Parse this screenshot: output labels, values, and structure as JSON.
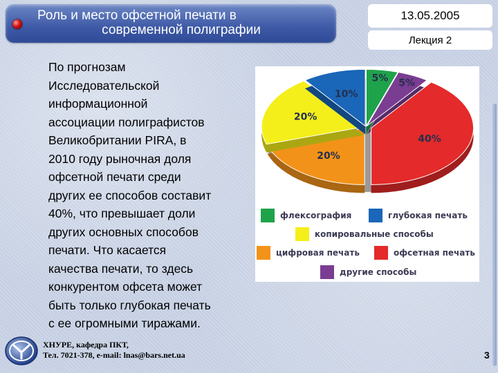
{
  "title": {
    "line1": "Роль  и место офсетной печати в",
    "line2": "современной полиграфии"
  },
  "date": "13.05.2005",
  "lecture": "Лекция 2",
  "body": {
    "lines": [
      "По прогнозам",
      "Исследовательской",
      "информационной",
      "ассоциации полиграфистов",
      "Великобритании PIRA, в",
      "2010 году рыночная доля",
      "офсетной печати среди",
      "других ее способов составит",
      "40%, что превышает доли",
      "других основных способов",
      "печати. Что касается",
      "качества печати, то здесь",
      "конкурентом офсета может",
      "быть только глубокая печать",
      "с ее огромными тиражами."
    ]
  },
  "footer": {
    "line1": "ХНУРЕ,  кафедра ПКТ,",
    "line2": "Тел. 7021-378, e-mail: lnas@bars.net.ua",
    "page": "3"
  },
  "colors": {
    "flexo": "#1fa34a",
    "gravure": "#1a66b8",
    "copy": "#f4ef1a",
    "digital": "#f39219",
    "offset": "#e42a2a",
    "other": "#7a3d92"
  },
  "chart_data": {
    "type": "pie",
    "title": "",
    "slices": [
      {
        "name": "флексография",
        "value": 5,
        "label": "5%",
        "color": "#1fa34a"
      },
      {
        "name": "другие способы",
        "value": 5,
        "label": "5%",
        "color": "#7a3d92"
      },
      {
        "name": "офсетная печать",
        "value": 40,
        "label": "40%",
        "color": "#e42a2a"
      },
      {
        "name": "цифровая печать",
        "value": 20,
        "label": "20%",
        "color": "#f39219"
      },
      {
        "name": "копировальные способы",
        "value": 20,
        "label": "20%",
        "color": "#f4ef1a"
      },
      {
        "name": "глубокая печать",
        "value": 10,
        "label": "10%",
        "color": "#1a66b8"
      }
    ],
    "legend": [
      {
        "name": "флексография",
        "color": "#1fa34a"
      },
      {
        "name": "глубокая печать",
        "color": "#1a66b8"
      },
      {
        "name": "копировальные способы",
        "color": "#f4ef1a"
      },
      {
        "name": "цифровая печать",
        "color": "#f39219"
      },
      {
        "name": "офсетная печать",
        "color": "#e42a2a"
      },
      {
        "name": "другие способы",
        "color": "#7a3d92"
      }
    ],
    "legend_placement": "bottom"
  }
}
